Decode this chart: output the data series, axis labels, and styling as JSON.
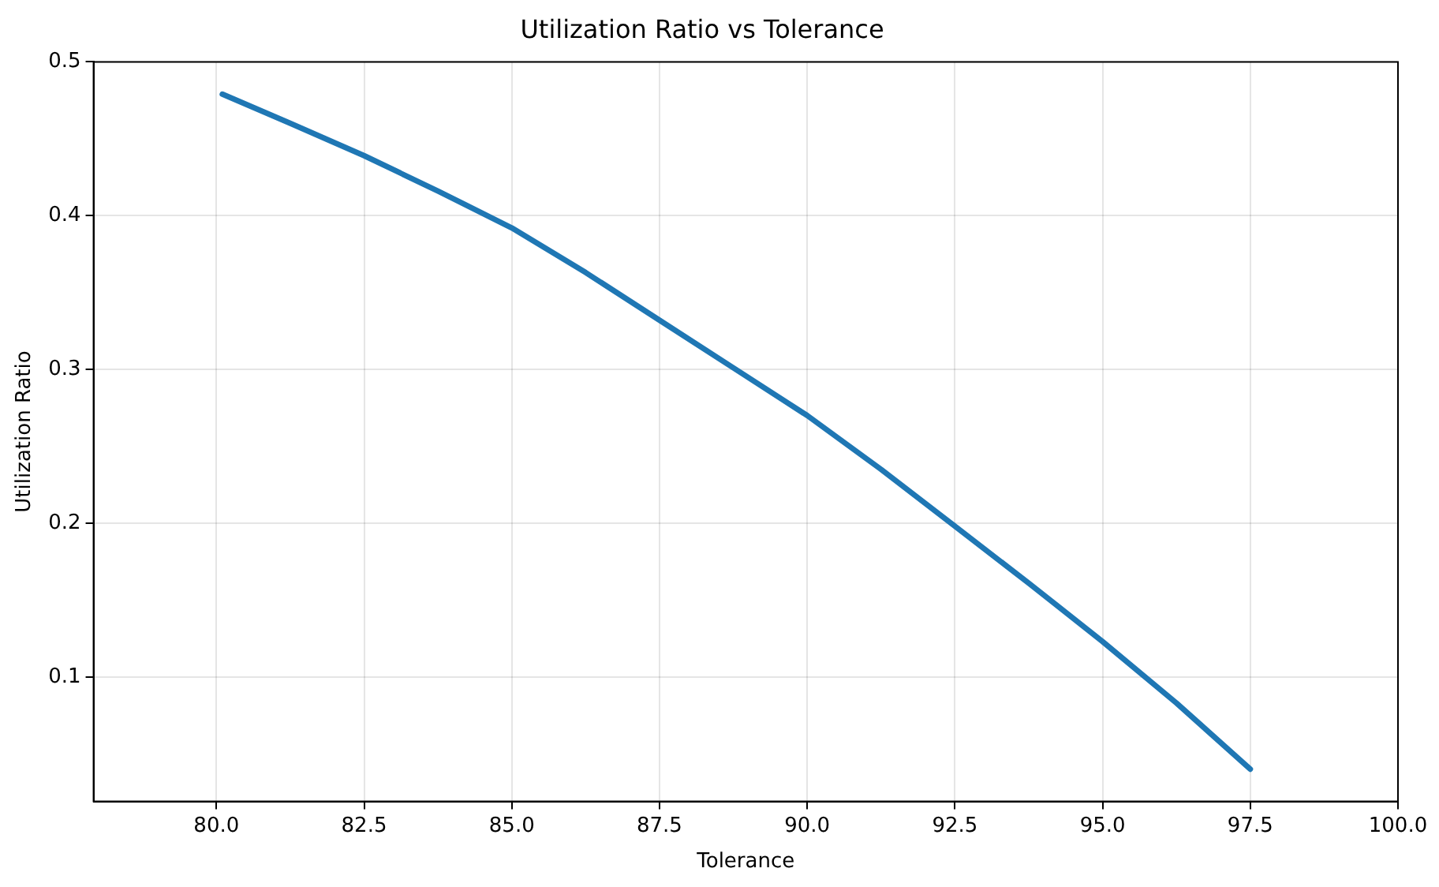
{
  "chart_data": {
    "type": "line",
    "title": "Utilization Ratio vs Tolerance",
    "xlabel": "Tolerance",
    "ylabel": "Utilization Ratio",
    "x": [
      80.1,
      81.25,
      82.5,
      83.75,
      85.0,
      86.25,
      87.5,
      88.75,
      90.0,
      91.25,
      92.5,
      93.75,
      95.0,
      96.25,
      97.5
    ],
    "series": [
      {
        "color": "#1f77b4",
        "values": [
          0.479,
          0.46,
          0.439,
          0.416,
          0.392,
          0.363,
          0.332,
          0.301,
          0.27,
          0.235,
          0.198,
          0.161,
          0.123,
          0.083,
          0.04
        ]
      }
    ],
    "xlim": [
      77.92,
      100.0
    ],
    "xticks": [
      {
        "value": 80,
        "label": "80.0"
      },
      {
        "value": 82.5,
        "label": "82.5"
      },
      {
        "value": 85,
        "label": "85.0"
      },
      {
        "value": 87.5,
        "label": "87.5"
      },
      {
        "value": 90,
        "label": "90.0"
      },
      {
        "value": 92.5,
        "label": "92.5"
      },
      {
        "value": 95,
        "label": "95.0"
      },
      {
        "value": 97.5,
        "label": "97.5"
      },
      {
        "value": 100,
        "label": "100.0"
      }
    ],
    "ylim": [
      0.019,
      0.5
    ],
    "yticks": [
      0.1,
      0.2,
      0.3,
      0.4,
      0.5
    ],
    "grid": true,
    "marker": "none",
    "line_style": "solid"
  }
}
